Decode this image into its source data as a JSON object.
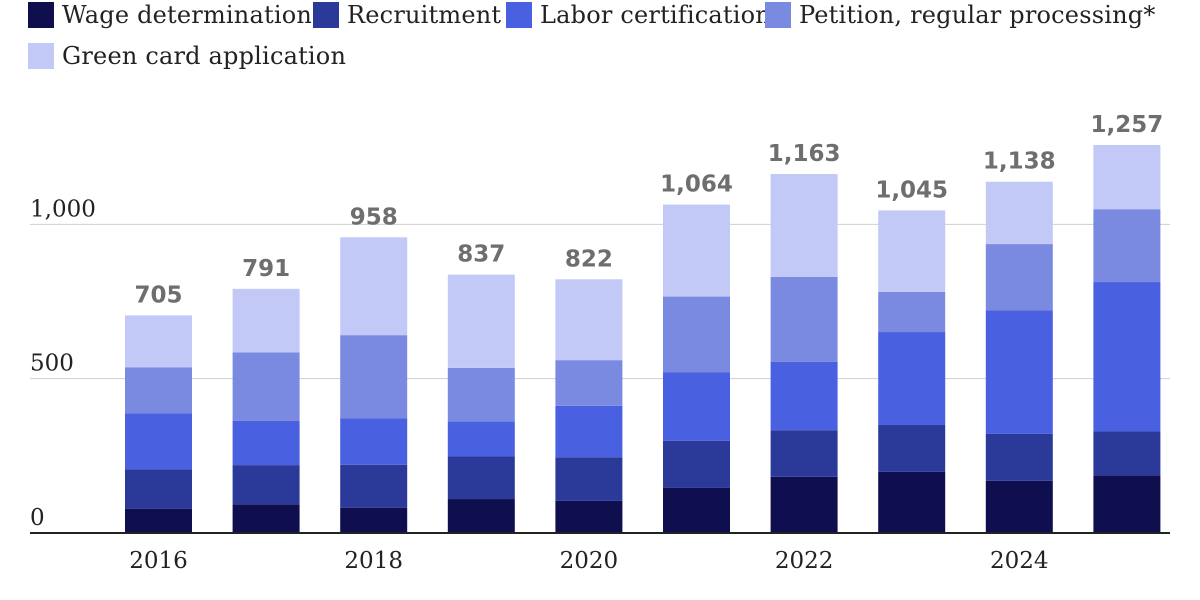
{
  "chart_data": {
    "type": "bar",
    "stacked": true,
    "categories": [
      "2016",
      "2017",
      "2018",
      "2019",
      "2020",
      "2021",
      "2022",
      "2023",
      "2024",
      "2025"
    ],
    "x_tick_labels": [
      "2016",
      "",
      "2018",
      "",
      "2020",
      "",
      "2022",
      "",
      "2024",
      ""
    ],
    "series": [
      {
        "name": "Wage determination",
        "color": "#0f0e4f",
        "values": [
          78,
          93,
          82,
          110,
          104,
          146,
          182,
          198,
          169,
          187
        ]
      },
      {
        "name": "Recruitment",
        "color": "#2b3a98",
        "values": [
          128,
          127,
          139,
          138,
          141,
          153,
          151,
          152,
          152,
          142
        ]
      },
      {
        "name": "Labor certification",
        "color": "#4960e0",
        "values": [
          181,
          143,
          151,
          113,
          167,
          221,
          222,
          301,
          400,
          484
        ]
      },
      {
        "name": "Petition, regular processing*",
        "color": "#7a8ae0",
        "values": [
          150,
          222,
          269,
          174,
          148,
          246,
          275,
          130,
          215,
          236
        ]
      },
      {
        "name": "Green card application",
        "color": "#c3c9f7",
        "values": [
          168,
          206,
          317,
          302,
          262,
          298,
          333,
          264,
          202,
          208
        ]
      }
    ],
    "totals": [
      "705",
      "791",
      "958",
      "837",
      "822",
      "1,064",
      "1,163",
      "1,045",
      "1,138",
      "1,257"
    ],
    "y_ticks": [
      0,
      500,
      1000
    ],
    "y_tick_labels": [
      "0",
      "500",
      "1,000"
    ],
    "ylim": [
      0,
      1257
    ],
    "grid": true,
    "legend_position": "top"
  }
}
